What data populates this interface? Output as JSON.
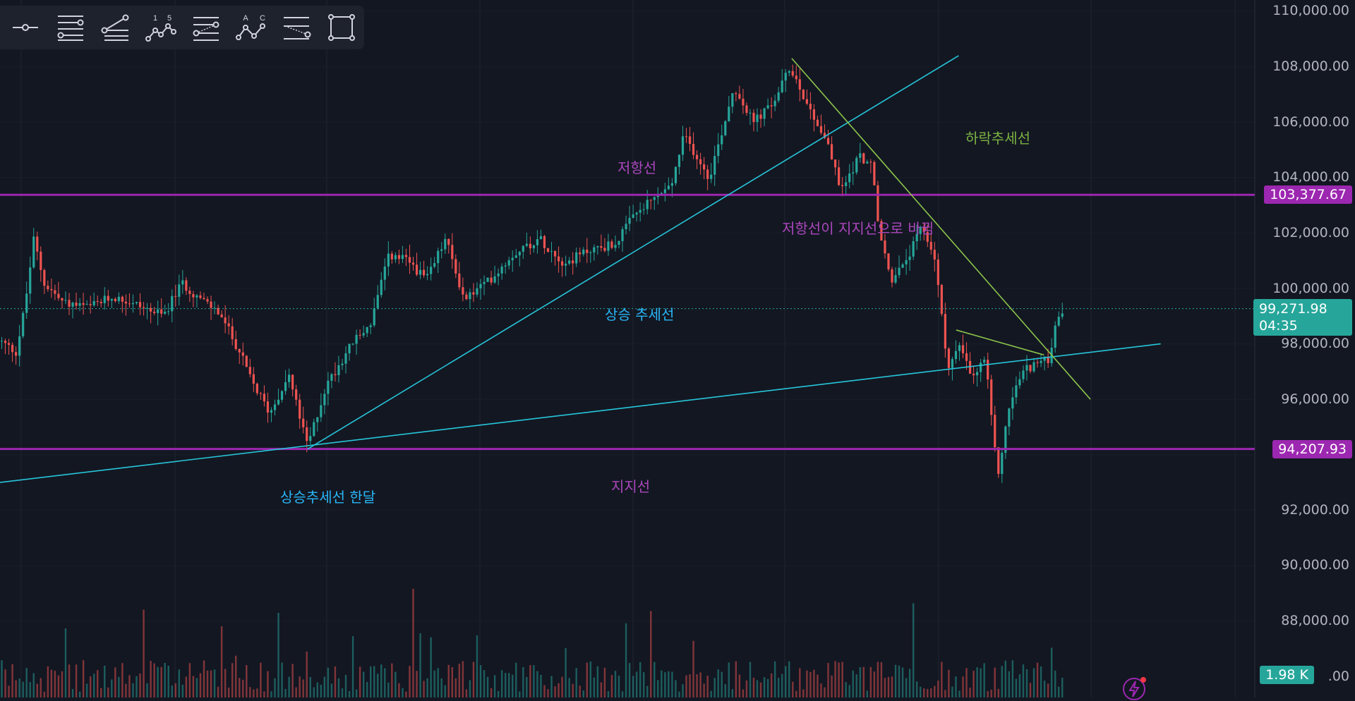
{
  "toolbar": {
    "tools": [
      "horizontal-ray-icon",
      "fib-retracement-icon",
      "pitchfork-icon",
      "elliott-wave-icon",
      "fib-channel-icon",
      "abcd-pattern-icon",
      "trend-angle-icon",
      "rectangle-icon"
    ],
    "elliott_labels": [
      "1",
      "5"
    ],
    "abcd_labels": [
      "A",
      "C"
    ]
  },
  "price_axis": {
    "ticks": [
      "110,000.00",
      "108,000.00",
      "106,000.00",
      "104,000.00",
      "102,000.00",
      "100,000.00",
      "98,000.00",
      "96,000.00",
      "92,000.00",
      "90,000.00",
      "88,000.00",
      ".00"
    ]
  },
  "price_tags": {
    "resistance": "103,377.67",
    "current": "99,271.98",
    "countdown": "04:35",
    "support": "94,207.93",
    "volume": "1.98 K"
  },
  "annotations": {
    "resistance": "저항선",
    "resistance_to_support": "저항선이 지지선으로 바뀜",
    "uptrend": "상승 추세선",
    "downtrend": "하락추세선",
    "support": "지지선",
    "uptrend_month": "상승추세선 한달"
  },
  "colors": {
    "background": "#131722",
    "up": "#26a69a",
    "down": "#ef5350",
    "level_line": "#9c27b0",
    "trend_blue": "#26c6da",
    "trend_green": "#8bc34a",
    "annotation_purple": "#ab47bc",
    "annotation_blue": "#29b6f6",
    "annotation_green": "#7cb342"
  },
  "chart_data": {
    "type": "candlestick",
    "ylim": [
      86000,
      111200
    ],
    "levels": {
      "resistance": 103377.67,
      "support": 94207.93,
      "current": 99271.98
    },
    "trendlines": [
      {
        "name": "상승 추세선",
        "from": [
          0.245,
          94200
        ],
        "to": [
          0.764,
          108400
        ]
      },
      {
        "name": "상승추세선 한달",
        "from": [
          0.0,
          93000
        ],
        "to": [
          0.925,
          98000
        ]
      },
      {
        "name": "하락추세선",
        "from": [
          0.631,
          108300
        ],
        "to": [
          0.869,
          96000
        ]
      },
      {
        "name": "short-term-downtrend",
        "from": [
          0.762,
          98500
        ],
        "to": [
          0.832,
          97600
        ]
      }
    ],
    "price_path": [
      [
        0.0,
        98100
      ],
      [
        0.013,
        97700
      ],
      [
        0.02,
        99400
      ],
      [
        0.027,
        101800
      ],
      [
        0.035,
        100200
      ],
      [
        0.05,
        99500
      ],
      [
        0.07,
        99300
      ],
      [
        0.09,
        99700
      ],
      [
        0.11,
        99400
      ],
      [
        0.13,
        99000
      ],
      [
        0.145,
        100200
      ],
      [
        0.16,
        99600
      ],
      [
        0.175,
        99100
      ],
      [
        0.19,
        97800
      ],
      [
        0.2,
        96700
      ],
      [
        0.215,
        95500
      ],
      [
        0.23,
        96900
      ],
      [
        0.245,
        94300
      ],
      [
        0.26,
        96500
      ],
      [
        0.28,
        98000
      ],
      [
        0.295,
        98700
      ],
      [
        0.31,
        101200
      ],
      [
        0.325,
        101000
      ],
      [
        0.34,
        100300
      ],
      [
        0.355,
        101800
      ],
      [
        0.37,
        99600
      ],
      [
        0.39,
        100300
      ],
      [
        0.41,
        101300
      ],
      [
        0.43,
        101800
      ],
      [
        0.45,
        100900
      ],
      [
        0.47,
        101400
      ],
      [
        0.49,
        101600
      ],
      [
        0.505,
        102600
      ],
      [
        0.52,
        103200
      ],
      [
        0.535,
        103700
      ],
      [
        0.545,
        105500
      ],
      [
        0.555,
        104800
      ],
      [
        0.565,
        104000
      ],
      [
        0.575,
        105600
      ],
      [
        0.585,
        107300
      ],
      [
        0.6,
        106000
      ],
      [
        0.615,
        106600
      ],
      [
        0.63,
        108000
      ],
      [
        0.645,
        106500
      ],
      [
        0.66,
        105200
      ],
      [
        0.67,
        103500
      ],
      [
        0.685,
        104800
      ],
      [
        0.695,
        104400
      ],
      [
        0.7,
        102200
      ],
      [
        0.71,
        100300
      ],
      [
        0.72,
        100800
      ],
      [
        0.735,
        102200
      ],
      [
        0.745,
        101100
      ],
      [
        0.755,
        97200
      ],
      [
        0.765,
        97900
      ],
      [
        0.775,
        96700
      ],
      [
        0.785,
        97500
      ],
      [
        0.795,
        93200
      ],
      [
        0.805,
        95900
      ],
      [
        0.815,
        97000
      ],
      [
        0.825,
        97300
      ],
      [
        0.835,
        97400
      ],
      [
        0.842,
        98700
      ],
      [
        0.848,
        99270
      ]
    ]
  }
}
